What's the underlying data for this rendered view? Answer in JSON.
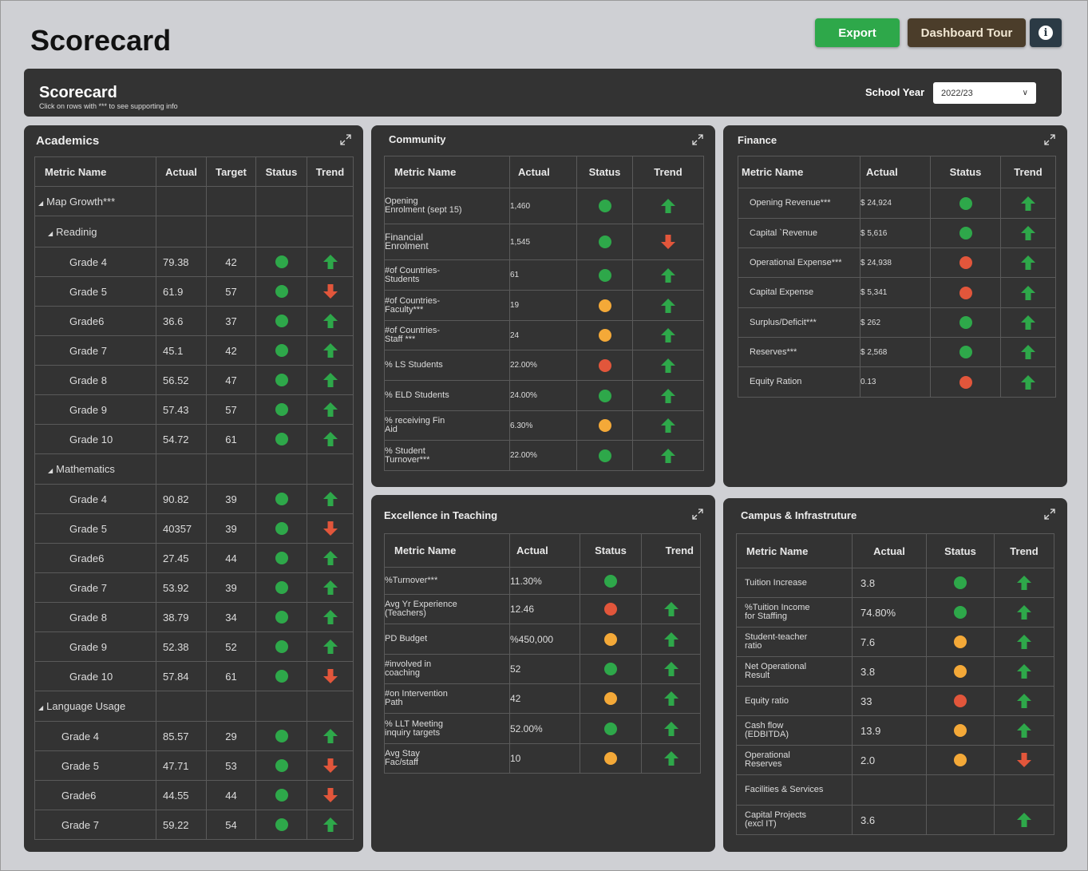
{
  "page": {
    "title": "Scorecard"
  },
  "buttons": {
    "export": "Export",
    "tour": "Dashboard Tour"
  },
  "header": {
    "title": "Scorecard",
    "subtitle": "Click on rows with *** to see supporting info",
    "school_year_label": "School Year",
    "school_year_value": "2022/23"
  },
  "colors": {
    "green": "#2ea84a",
    "red": "#e2563b",
    "orange": "#f4a938"
  },
  "academics": {
    "title": "Academics",
    "headers": [
      "Metric Name",
      "Actual",
      "Target",
      "Status",
      "Trend"
    ],
    "rows": [
      {
        "type": "group",
        "level": 0,
        "label": "Map Growth***"
      },
      {
        "type": "group",
        "level": 1,
        "label": "Readinig"
      },
      {
        "label": "Grade 4",
        "indent": 2,
        "actual": "79.38",
        "target": "42",
        "status": "green",
        "trend": "up"
      },
      {
        "label": "Grade 5",
        "indent": 2,
        "actual": "61.9",
        "target": "57",
        "status": "green",
        "trend": "down"
      },
      {
        "label": "Grade6",
        "indent": 2,
        "actual": "36.6",
        "target": "37",
        "status": "green",
        "trend": "up"
      },
      {
        "label": "Grade 7",
        "indent": 2,
        "actual": "45.1",
        "target": "42",
        "status": "green",
        "trend": "up"
      },
      {
        "label": "Grade 8",
        "indent": 2,
        "actual": "56.52",
        "target": "47",
        "status": "green",
        "trend": "up"
      },
      {
        "label": "Grade 9",
        "indent": 2,
        "actual": "57.43",
        "target": "57",
        "status": "green",
        "trend": "up"
      },
      {
        "label": "Grade 10",
        "indent": 2,
        "actual": "54.72",
        "target": "61",
        "status": "green",
        "trend": "up"
      },
      {
        "type": "group",
        "level": 1,
        "label": "Mathematics"
      },
      {
        "label": "Grade 4",
        "indent": 2,
        "actual": "90.82",
        "target": "39",
        "status": "green",
        "trend": "up"
      },
      {
        "label": "Grade 5",
        "indent": 2,
        "actual": "40357",
        "target": "39",
        "status": "green",
        "trend": "down"
      },
      {
        "label": "Grade6",
        "indent": 2,
        "actual": "27.45",
        "target": "44",
        "status": "green",
        "trend": "up"
      },
      {
        "label": "Grade 7",
        "indent": 2,
        "actual": "53.92",
        "target": "39",
        "status": "green",
        "trend": "up"
      },
      {
        "label": "Grade 8",
        "indent": 2,
        "actual": "38.79",
        "target": "34",
        "status": "green",
        "trend": "up"
      },
      {
        "label": "Grade 9",
        "indent": 2,
        "actual": "52.38",
        "target": "52",
        "status": "green",
        "trend": "up"
      },
      {
        "label": "Grade 10",
        "indent": 2,
        "actual": "57.84",
        "target": "61",
        "status": "green",
        "trend": "down"
      },
      {
        "type": "group",
        "level": 0,
        "label": "Language Usage"
      },
      {
        "label": "Grade 4",
        "indent": 1,
        "actual": "85.57",
        "target": "29",
        "status": "green",
        "trend": "up"
      },
      {
        "label": "Grade 5",
        "indent": 1,
        "actual": "47.71",
        "target": "53",
        "status": "green",
        "trend": "down"
      },
      {
        "label": "Grade6",
        "indent": 1,
        "actual": "44.55",
        "target": "44",
        "status": "green",
        "trend": "down"
      },
      {
        "label": "Grade 7",
        "indent": 1,
        "actual": "59.22",
        "target": "54",
        "status": "green",
        "trend": "up"
      }
    ]
  },
  "community": {
    "title": "Community",
    "headers": [
      "Metric Name",
      "Actual",
      "Status",
      "Trend"
    ],
    "rows": [
      {
        "label": "Opening\nEnrolment (sept 15)",
        "actual": "1,460",
        "status": "green",
        "trend": "up"
      },
      {
        "label": "Financial\nEnrolment",
        "actual": "1,545",
        "status": "green",
        "trend": "down"
      },
      {
        "label": "#of Countries-\nStudents",
        "actual": "61",
        "status": "green",
        "trend": "up"
      },
      {
        "label": "#of Countries-\nFaculty***",
        "actual": "19",
        "status": "orange",
        "trend": "up"
      },
      {
        "label": "#of Countries-\nStaff ***",
        "actual": "24",
        "status": "orange",
        "trend": "up"
      },
      {
        "label": "% LS Students",
        "actual": "22.00%",
        "status": "red",
        "trend": "up"
      },
      {
        "label": "%  ELD Students",
        "actual": "24.00%",
        "status": "green",
        "trend": "up"
      },
      {
        "label": "%  receiving Fin\nAid",
        "actual": "6.30%",
        "status": "orange",
        "trend": "up"
      },
      {
        "label": "%  Student\nTurnover***",
        "actual": "22.00%",
        "status": "green",
        "trend": "up"
      }
    ]
  },
  "finance": {
    "title": "Finance",
    "headers": [
      "Metric Name",
      "Actual",
      "Status",
      "Trend"
    ],
    "rows": [
      {
        "label": "Opening Revenue***",
        "actual": "$ 24,924",
        "status": "green",
        "trend": "up"
      },
      {
        "label": "Capital `Revenue",
        "actual": "$ 5,616",
        "status": "green",
        "trend": "up"
      },
      {
        "label": "Operational Expense***",
        "actual": "$ 24,938",
        "status": "red",
        "trend": "up"
      },
      {
        "label": "Capital Expense",
        "actual": "$ 5,341",
        "status": "red",
        "trend": "up"
      },
      {
        "label": "Surplus/Deficit***",
        "actual": "$ 262",
        "status": "green",
        "trend": "up"
      },
      {
        "label": "Reserves***",
        "actual": "$ 2,568",
        "status": "green",
        "trend": "up"
      },
      {
        "label": "Equity Ration",
        "actual": "0.13",
        "status": "red",
        "trend": "up"
      }
    ]
  },
  "teaching": {
    "title": "Excellence in Teaching",
    "headers": [
      "Metric Name",
      "Actual",
      "Status",
      "Trend"
    ],
    "rows": [
      {
        "label": "%Turnover***",
        "actual": "11.30%",
        "status": "green",
        "trend": ""
      },
      {
        "label": "Avg Yr Experience\n(Teachers)",
        "actual": "12.46",
        "status": "red",
        "trend": "up"
      },
      {
        "label": "PD Budget",
        "actual": "%450,000",
        "status": "orange",
        "trend": "up"
      },
      {
        "label": "#involved in\ncoaching",
        "actual": "52",
        "status": "green",
        "trend": "up"
      },
      {
        "label": "#on Intervention\nPath",
        "actual": "42",
        "status": "orange",
        "trend": "up"
      },
      {
        "label": "% LLT Meeting\ninquiry targets",
        "actual": "52.00%",
        "status": "green",
        "trend": "up"
      },
      {
        "label": "Avg Stay\nFac/staff",
        "actual": "10",
        "status": "orange",
        "trend": "up"
      }
    ]
  },
  "campus": {
    "title": "Campus & Infrastruture",
    "headers": [
      "Metric Name",
      "Actual",
      "Status",
      "Trend"
    ],
    "rows": [
      {
        "label": "Tuition Increase",
        "actual": "3.8",
        "status": "green",
        "trend": "up"
      },
      {
        "label": "%Tuition Income\nfor Staffing",
        "actual": "74.80%",
        "status": "green",
        "trend": "up"
      },
      {
        "label": "Student-teacher\nratio",
        "actual": "7.6",
        "status": "orange",
        "trend": "up"
      },
      {
        "label": "Net Operational\nResult",
        "actual": "3.8",
        "status": "orange",
        "trend": "up"
      },
      {
        "label": "Equity ratio",
        "actual": "33",
        "status": "red",
        "trend": "up"
      },
      {
        "label": "Cash flow\n(EDBITDA)",
        "actual": "13.9",
        "status": "orange",
        "trend": "up"
      },
      {
        "label": "Operational\nReserves",
        "actual": "2.0",
        "status": "orange",
        "trend": "down"
      },
      {
        "label": "Facilities & Services",
        "actual": "",
        "status": "",
        "trend": ""
      },
      {
        "label": "Capital Projects\n(excl IT)",
        "actual": "3.6",
        "status": "",
        "trend": "up"
      }
    ]
  }
}
